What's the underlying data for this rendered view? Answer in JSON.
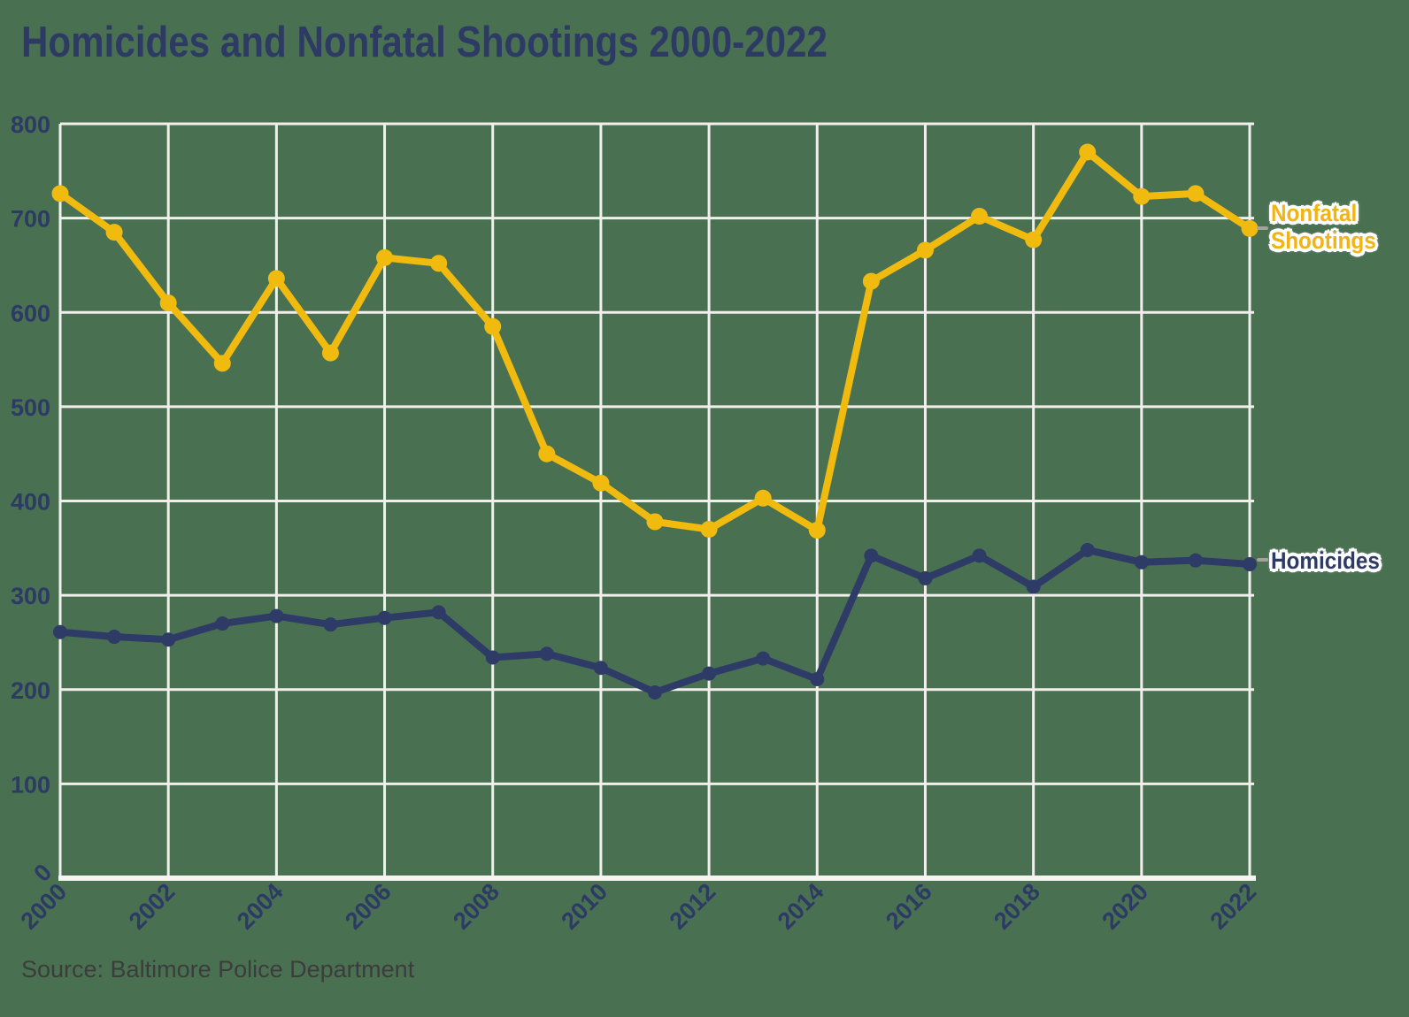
{
  "title": "Homicides and Nonfatal Shootings 2000-2022",
  "source_note": "Source: Baltimore Police Department",
  "colors": {
    "background": "#4a7052",
    "grid": "#f0efeb",
    "axis": "#f5f4f0",
    "navy": "#2d3b66",
    "yellow": "#f0bb0e",
    "yellow_label_text": "#f2b414",
    "leader_dash": "#a3a39b",
    "tick_text": "#2c3a64",
    "source_text": "#3c3c3c"
  },
  "chart_data": {
    "type": "line",
    "title": "Homicides and Nonfatal Shootings 2000-2022",
    "x": [
      2000,
      2001,
      2002,
      2003,
      2004,
      2005,
      2006,
      2007,
      2008,
      2009,
      2010,
      2011,
      2012,
      2013,
      2014,
      2015,
      2016,
      2017,
      2018,
      2019,
      2020,
      2021,
      2022
    ],
    "x_tick_labels": [
      "2000",
      "2002",
      "2004",
      "2006",
      "2008",
      "2010",
      "2012",
      "2014",
      "2016",
      "2018",
      "2020",
      "2022"
    ],
    "y_ticks": [
      0,
      100,
      200,
      300,
      400,
      500,
      600,
      700,
      800
    ],
    "ylim": [
      0,
      800
    ],
    "xlim": [
      2000,
      2022
    ],
    "grid": true,
    "legend_position": "end-of-line-labels-right",
    "series": [
      {
        "name": "Nonfatal Shootings",
        "label_lines": [
          "Nonfatal",
          "Shootings"
        ],
        "color": "#f0bb0e",
        "values": [
          726,
          685,
          610,
          546,
          636,
          557,
          658,
          652,
          585,
          450,
          419,
          378,
          370,
          403,
          369,
          633,
          666,
          702,
          677,
          770,
          723,
          726,
          689
        ]
      },
      {
        "name": "Homicides",
        "label_lines": [
          "Homicides"
        ],
        "color": "#2d3b66",
        "values": [
          261,
          256,
          253,
          270,
          278,
          269,
          276,
          282,
          234,
          238,
          223,
          197,
          217,
          233,
          211,
          342,
          318,
          342,
          309,
          348,
          335,
          337,
          333
        ]
      }
    ]
  }
}
